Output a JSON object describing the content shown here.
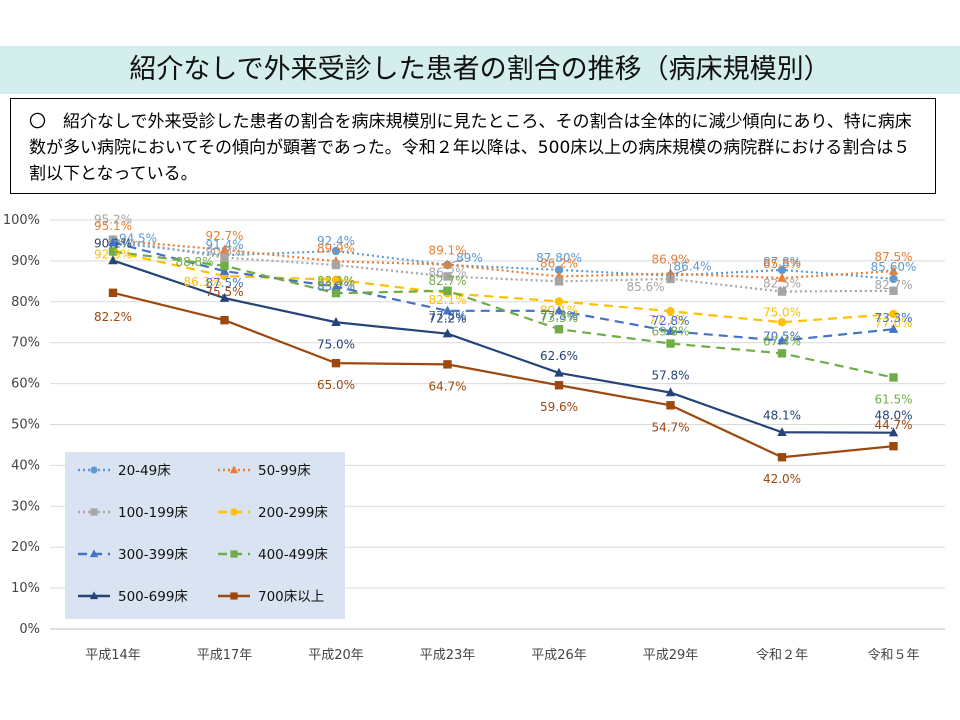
{
  "title": "紹介なしで外来受診した患者の割合の推移（病床規模別）",
  "summary": "〇　紹介なしで外来受診した患者の割合を病床規模別に見たところ、その割合は全体的に減少傾向にあり、特に病床数が多い病院においてその傾向が顕著であった。令和２年以降は、500床以上の病床規模の病院群における割合は５割以下となっている。",
  "chart_data": {
    "type": "line",
    "categories": [
      "平成14年",
      "平成17年",
      "平成20年",
      "平成23年",
      "平成26年",
      "平成29年",
      "令和２年",
      "令和５年"
    ],
    "ylim": [
      0,
      100
    ],
    "ytick_labels": [
      "0%",
      "10%",
      "20%",
      "30%",
      "40%",
      "50%",
      "60%",
      "70%",
      "80%",
      "90%",
      "100%"
    ],
    "grid": true,
    "legend_position": "bottom-left",
    "series": [
      {
        "name": "20-49床",
        "color": "#5b9bd5",
        "dash": "dot",
        "marker": "circle",
        "values": [
          94.5,
          91.4,
          92.4,
          89.0,
          87.8,
          86.4,
          87.8,
          85.6
        ],
        "labels": [
          "94.5%",
          "91.4%",
          "92.4%",
          "89%",
          "87.80%",
          "86.4%",
          "87.8%",
          "85.60%"
        ]
      },
      {
        "name": "50-99床",
        "color": "#ed7d31",
        "dash": "dot",
        "marker": "triangle",
        "values": [
          95.1,
          92.7,
          89.9,
          89.1,
          86.2,
          86.9,
          85.8,
          87.5
        ],
        "labels": [
          "95.1%",
          "92.7%",
          "89.9%",
          "89.1%",
          "86.2%",
          "86.9%",
          "85.8%",
          "87.5%"
        ]
      },
      {
        "name": "100-199床",
        "color": "#a5a5a5",
        "dash": "dot",
        "marker": "square",
        "values": [
          95.2,
          90.8,
          89.0,
          86.2,
          85.0,
          85.6,
          82.5,
          82.7
        ],
        "labels": [
          "95.2%",
          "90.8%",
          "",
          "86.2%",
          "",
          "85.6%",
          "82.5%",
          "82.7%"
        ]
      },
      {
        "name": "200-299床",
        "color": "#ffc000",
        "dash": "dash",
        "marker": "circle",
        "values": [
          92.3,
          86.3,
          85.4,
          82.1,
          80.1,
          77.7,
          75.0,
          77.0
        ],
        "labels": [
          "92.3%",
          "86.3%",
          "85.4%",
          "82.1%",
          "80.1%",
          "77.7%",
          "75.0%",
          "77.0%"
        ]
      },
      {
        "name": "300-399床",
        "color": "#4472c4",
        "dash": "dash",
        "marker": "triangle",
        "values": [
          94.5,
          87.5,
          83.7,
          77.8,
          77.8,
          72.8,
          70.5,
          73.3
        ],
        "labels": [
          "",
          "87.5%",
          "83.7%",
          "77.8%",
          "77.8%",
          "72.8%",
          "70.5%",
          "73.3%"
        ]
      },
      {
        "name": "400-499床",
        "color": "#70ad47",
        "dash": "dash",
        "marker": "square",
        "values": [
          92.3,
          88.8,
          82.1,
          82.7,
          73.3,
          69.8,
          67.4,
          61.5
        ],
        "labels": [
          "",
          "88.8%",
          "82.1%",
          "82.7%",
          "73.3%",
          "69.8%",
          "67.4%",
          "61.5%"
        ]
      },
      {
        "name": "500-699床",
        "color": "#264478",
        "dash": "solid",
        "marker": "triangle",
        "values": [
          90.1,
          80.9,
          75.0,
          72.2,
          62.6,
          57.8,
          48.1,
          48.0
        ],
        "labels": [
          "90.1%",
          "",
          "75.0%",
          "72.2%",
          "62.6%",
          "57.8%",
          "48.1%",
          "48.0%"
        ]
      },
      {
        "name": "700床以上",
        "color": "#9e480e",
        "dash": "solid",
        "marker": "square",
        "values": [
          82.2,
          75.5,
          65.0,
          64.7,
          59.6,
          54.7,
          42.0,
          44.7
        ],
        "labels": [
          "82.2%",
          "75.5%",
          "65.0%",
          "64.7%",
          "59.6%",
          "54.7%",
          "42.0%",
          "44.7%"
        ]
      }
    ]
  }
}
